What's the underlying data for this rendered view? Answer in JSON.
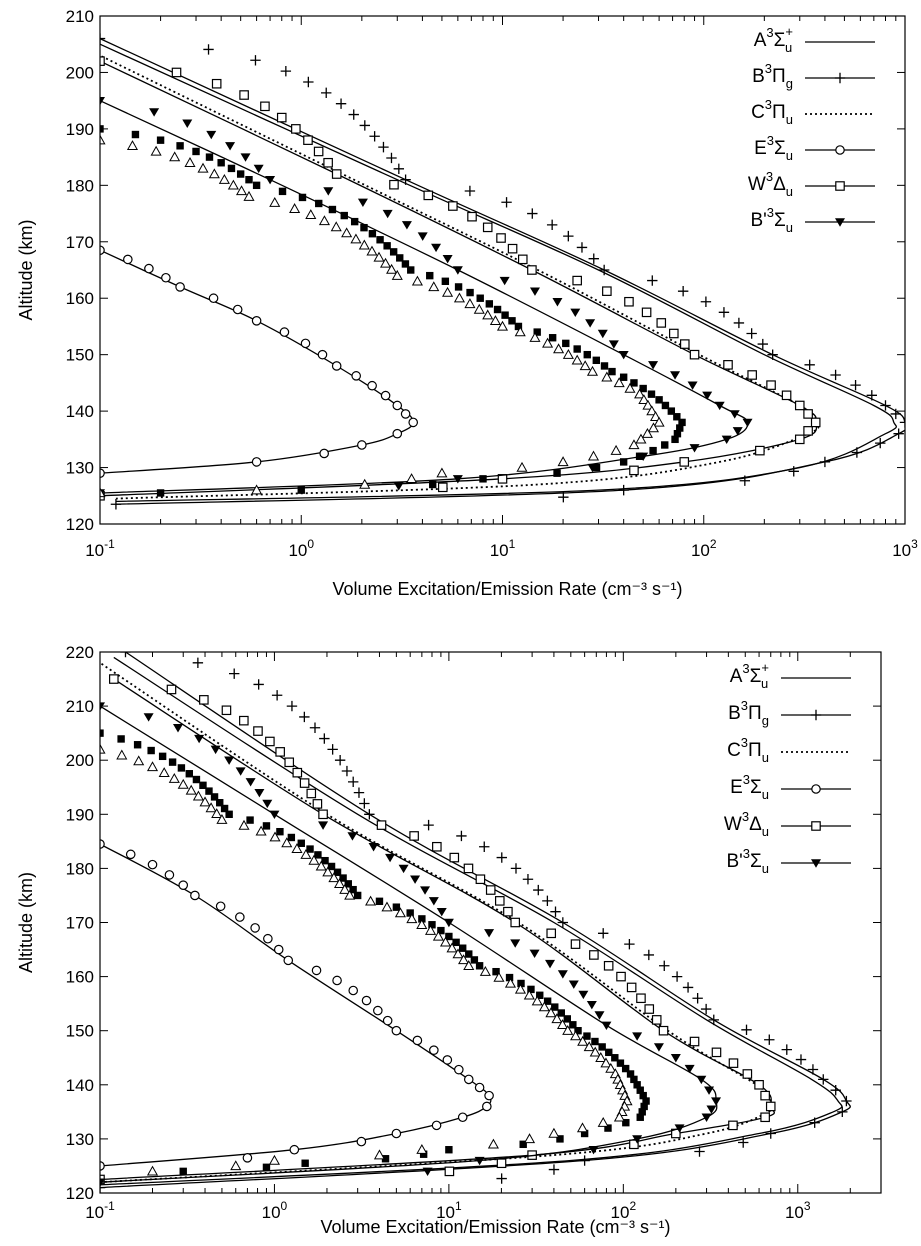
{
  "chart_data": [
    {
      "type": "line",
      "xscale": "log",
      "xlim": [
        0.1,
        1000
      ],
      "ylim": [
        120,
        210
      ],
      "xlabel": "Volume Excitation/Emission Rate (cm⁻³ s⁻¹)",
      "ylabel": "Altitude (km)",
      "ytick_labels": [
        "120",
        "130",
        "140",
        "150",
        "160",
        "170",
        "180",
        "190",
        "200",
        "210"
      ],
      "xtick_labels": [
        {
          "base": "10",
          "exp": "-1"
        },
        {
          "base": "10",
          "exp": "0"
        },
        {
          "base": "10",
          "exp": "1"
        },
        {
          "base": "10",
          "exp": "2"
        },
        {
          "base": "10",
          "exp": "3"
        }
      ],
      "legend_position": "top-right",
      "legend": [
        {
          "name": "A³Σu⁺",
          "parts": [
            "A",
            "3",
            "Σ",
            "u",
            "+"
          ],
          "style": "solid",
          "marker": "none"
        },
        {
          "name": "B³Πg",
          "parts": [
            "B",
            "3",
            "Π",
            "g",
            ""
          ],
          "style": "solid",
          "marker": "plus"
        },
        {
          "name": "C³Πu",
          "parts": [
            "C",
            "3",
            "Π",
            "u",
            ""
          ],
          "style": "dotted",
          "marker": "none"
        },
        {
          "name": "E³Σu",
          "parts": [
            "E",
            "3",
            "Σ",
            "u",
            ""
          ],
          "style": "solid",
          "marker": "circle"
        },
        {
          "name": "W³Δu",
          "parts": [
            "W",
            "3",
            "Δ",
            "u",
            ""
          ],
          "style": "solid",
          "marker": "square"
        },
        {
          "name": "B'³Σu",
          "parts": [
            "B'",
            "3",
            "Σ",
            "u",
            ""
          ],
          "style": "solid",
          "marker": "triangle-down"
        }
      ],
      "series": [
        {
          "name": "A³Σu⁺",
          "style": "solid",
          "marker": "none",
          "points": [
            [
              0.12,
              124
            ],
            [
              30,
              126
            ],
            [
              300,
              130
            ],
            [
              800,
              136
            ],
            [
              880,
              138
            ],
            [
              700,
              141
            ],
            [
              200,
              150
            ],
            [
              30,
              165
            ],
            [
              3,
              181
            ],
            [
              0.1,
              205
            ]
          ]
        },
        {
          "name": "B³Πg",
          "style": "solid",
          "marker": "plus",
          "points": [
            [
              0.12,
              123.5
            ],
            [
              40,
              126
            ],
            [
              400,
              131
            ],
            [
              930,
              136
            ],
            [
              1000,
              138
            ],
            [
              800,
              141
            ],
            [
              220,
              150
            ],
            [
              32,
              165
            ],
            [
              3.3,
              181
            ],
            [
              0.1,
              206
            ]
          ]
        },
        {
          "name": "C³Πu",
          "style": "dotted",
          "marker": "none",
          "points": [
            [
              0.12,
              124.5
            ],
            [
              15,
              127
            ],
            [
              120,
              131
            ],
            [
              330,
              136
            ],
            [
              360,
              138
            ],
            [
              300,
              141
            ],
            [
              95,
              150
            ],
            [
              15,
              165
            ],
            [
              1.6,
              182
            ],
            [
              0.1,
              203
            ]
          ]
        },
        {
          "name": "E³Σu",
          "style": "solid",
          "marker": "circle",
          "points": [
            [
              0.1,
              129
            ],
            [
              0.6,
              131
            ],
            [
              2,
              134
            ],
            [
              3,
              136
            ],
            [
              3.6,
              138
            ],
            [
              3,
              141
            ],
            [
              1.5,
              148
            ],
            [
              0.6,
              156
            ],
            [
              0.25,
              162
            ],
            [
              0.1,
              168.5
            ]
          ]
        },
        {
          "name": "W³Δu",
          "style": "solid",
          "marker": "square",
          "points": [
            [
              0.1,
              125
            ],
            [
              10,
              128
            ],
            [
              80,
              131
            ],
            [
              300,
              135
            ],
            [
              360,
              138
            ],
            [
              300,
              141
            ],
            [
              90,
              150
            ],
            [
              14,
              165
            ],
            [
              1.5,
              182
            ],
            [
              0.1,
              202
            ]
          ]
        },
        {
          "name": "B'³Σu",
          "style": "solid",
          "marker": "triangle-down",
          "points": [
            [
              0.1,
              125.5
            ],
            [
              6,
              128
            ],
            [
              50,
              132
            ],
            [
              130,
              135
            ],
            [
              165,
              138
            ],
            [
              120,
              141
            ],
            [
              40,
              150
            ],
            [
              6,
              165
            ],
            [
              0.7,
              181
            ],
            [
              0.1,
              195
            ]
          ]
        },
        {
          "name": "",
          "style": "none",
          "marker": "filled-square",
          "points": [
            [
              0.1,
              190
            ],
            [
              0.6,
              180
            ],
            [
              3.5,
              165
            ],
            [
              12,
              155
            ],
            [
              35,
              147
            ],
            [
              60,
              142
            ],
            [
              78,
              138
            ],
            [
              72,
              135
            ],
            [
              40,
              131
            ],
            [
              8,
              128
            ],
            [
              1,
              126
            ],
            [
              0.2,
              125.5
            ]
          ]
        },
        {
          "name": "",
          "style": "none",
          "marker": "open-triangle",
          "points": [
            [
              0.1,
              188
            ],
            [
              0.55,
              178
            ],
            [
              3,
              164
            ],
            [
              10,
              155
            ],
            [
              28,
              147
            ],
            [
              48,
              143
            ],
            [
              60,
              138
            ],
            [
              45,
              134
            ],
            [
              20,
              131
            ],
            [
              5,
              129
            ],
            [
              0.6,
              126
            ],
            [
              0.1,
              125.5
            ]
          ]
        }
      ]
    },
    {
      "type": "line",
      "xscale": "log",
      "xlim": [
        0.1,
        3000
      ],
      "ylim": [
        120,
        220
      ],
      "xlabel": "Volume Excitation/Emission Rate (cm⁻³ s⁻¹)",
      "ylabel": "Altitude (km)",
      "ytick_labels": [
        "120",
        "130",
        "140",
        "150",
        "160",
        "170",
        "180",
        "190",
        "200",
        "210",
        "220"
      ],
      "xtick_labels": [
        {
          "base": "10",
          "exp": "-1"
        },
        {
          "base": "10",
          "exp": "0"
        },
        {
          "base": "10",
          "exp": "1"
        },
        {
          "base": "10",
          "exp": "2"
        },
        {
          "base": "10",
          "exp": "3"
        }
      ],
      "legend_position": "top-right",
      "legend": [
        {
          "name": "A³Σu⁺",
          "parts": [
            "A",
            "3",
            "Σ",
            "u",
            "+"
          ],
          "style": "solid",
          "marker": "none"
        },
        {
          "name": "B³Πg",
          "parts": [
            "B",
            "3",
            "Π",
            "g",
            ""
          ],
          "style": "solid",
          "marker": "plus"
        },
        {
          "name": "C³Πu",
          "parts": [
            "C",
            "3",
            "Π",
            "u",
            ""
          ],
          "style": "dotted",
          "marker": "none"
        },
        {
          "name": "E³Σu",
          "parts": [
            "E",
            "3",
            "Σ",
            "u",
            ""
          ],
          "style": "solid",
          "marker": "circle"
        },
        {
          "name": "W³Δu",
          "parts": [
            "W",
            "3",
            "Δ",
            "u",
            ""
          ],
          "style": "solid",
          "marker": "square"
        },
        {
          "name": "B'³Σu",
          "parts": [
            "B'",
            "3",
            "Σ",
            "u",
            ""
          ],
          "style": "solid",
          "marker": "triangle-down"
        }
      ],
      "series": [
        {
          "name": "A³Σu⁺",
          "style": "solid",
          "marker": "none",
          "points": [
            [
              0.1,
              121.5
            ],
            [
              50,
              126
            ],
            [
              600,
              131
            ],
            [
              1600,
              135
            ],
            [
              1700,
              137
            ],
            [
              1200,
              141
            ],
            [
              300,
              152
            ],
            [
              40,
              170
            ],
            [
              3,
              190
            ],
            [
              0.12,
              219
            ]
          ]
        },
        {
          "name": "B³Πg",
          "style": "solid",
          "marker": "plus",
          "points": [
            [
              0.1,
              121
            ],
            [
              60,
              126
            ],
            [
              700,
              131
            ],
            [
              1800,
              135
            ],
            [
              1900,
              137
            ],
            [
              1400,
              141
            ],
            [
              330,
              152
            ],
            [
              45,
              170
            ],
            [
              3.5,
              190
            ],
            [
              0.14,
              220
            ]
          ]
        },
        {
          "name": "C³Πu",
          "style": "dotted",
          "marker": "none",
          "points": [
            [
              0.1,
              122
            ],
            [
              40,
              127
            ],
            [
              300,
              131
            ],
            [
              680,
              135
            ],
            [
              700,
              137
            ],
            [
              580,
              140
            ],
            [
              180,
              150
            ],
            [
              25,
              170
            ],
            [
              2,
              190
            ],
            [
              0.1,
              218
            ]
          ]
        },
        {
          "name": "E³Σu",
          "style": "solid",
          "marker": "circle",
          "points": [
            [
              0.1,
              125
            ],
            [
              1.3,
              128
            ],
            [
              5,
              131
            ],
            [
              12,
              134
            ],
            [
              16.5,
              136
            ],
            [
              17,
              138
            ],
            [
              13,
              141
            ],
            [
              5,
              150
            ],
            [
              1.2,
              163
            ],
            [
              0.35,
              175
            ],
            [
              0.1,
              184.5
            ]
          ]
        },
        {
          "name": "W³Δu",
          "style": "solid",
          "marker": "square",
          "points": [
            [
              0.1,
              122.5
            ],
            [
              30,
              127
            ],
            [
              200,
              131
            ],
            [
              650,
              134
            ],
            [
              700,
              136
            ],
            [
              600,
              140
            ],
            [
              170,
              150
            ],
            [
              24,
              170
            ],
            [
              1.9,
              190
            ],
            [
              0.12,
              215
            ]
          ]
        },
        {
          "name": "B'³Σu",
          "style": "solid",
          "marker": "triangle-down",
          "points": [
            [
              0.1,
              122
            ],
            [
              15,
              126
            ],
            [
              120,
              130
            ],
            [
              300,
              134
            ],
            [
              340,
              137
            ],
            [
              280,
              141
            ],
            [
              80,
              151
            ],
            [
              10,
              170
            ],
            [
              1,
              190
            ],
            [
              0.1,
              210
            ]
          ]
        },
        {
          "name": "",
          "style": "none",
          "marker": "filled-square",
          "points": [
            [
              0.1,
              205
            ],
            [
              0.55,
              190
            ],
            [
              3,
              175
            ],
            [
              15,
              162
            ],
            [
              55,
              150
            ],
            [
              110,
              142
            ],
            [
              135,
              137
            ],
            [
              125,
              134
            ],
            [
              60,
              131
            ],
            [
              10,
              128
            ],
            [
              1.5,
              125.5
            ],
            [
              0.3,
              124
            ]
          ]
        },
        {
          "name": "",
          "style": "none",
          "marker": "open-triangle",
          "points": [
            [
              0.1,
              202
            ],
            [
              0.5,
              189
            ],
            [
              2.7,
              175
            ],
            [
              13,
              162
            ],
            [
              48,
              150
            ],
            [
              90,
              142
            ],
            [
              105,
              137
            ],
            [
              95,
              134
            ],
            [
              40,
              131
            ],
            [
              7,
              128
            ],
            [
              1,
              126
            ],
            [
              0.2,
              124
            ]
          ]
        }
      ]
    }
  ]
}
